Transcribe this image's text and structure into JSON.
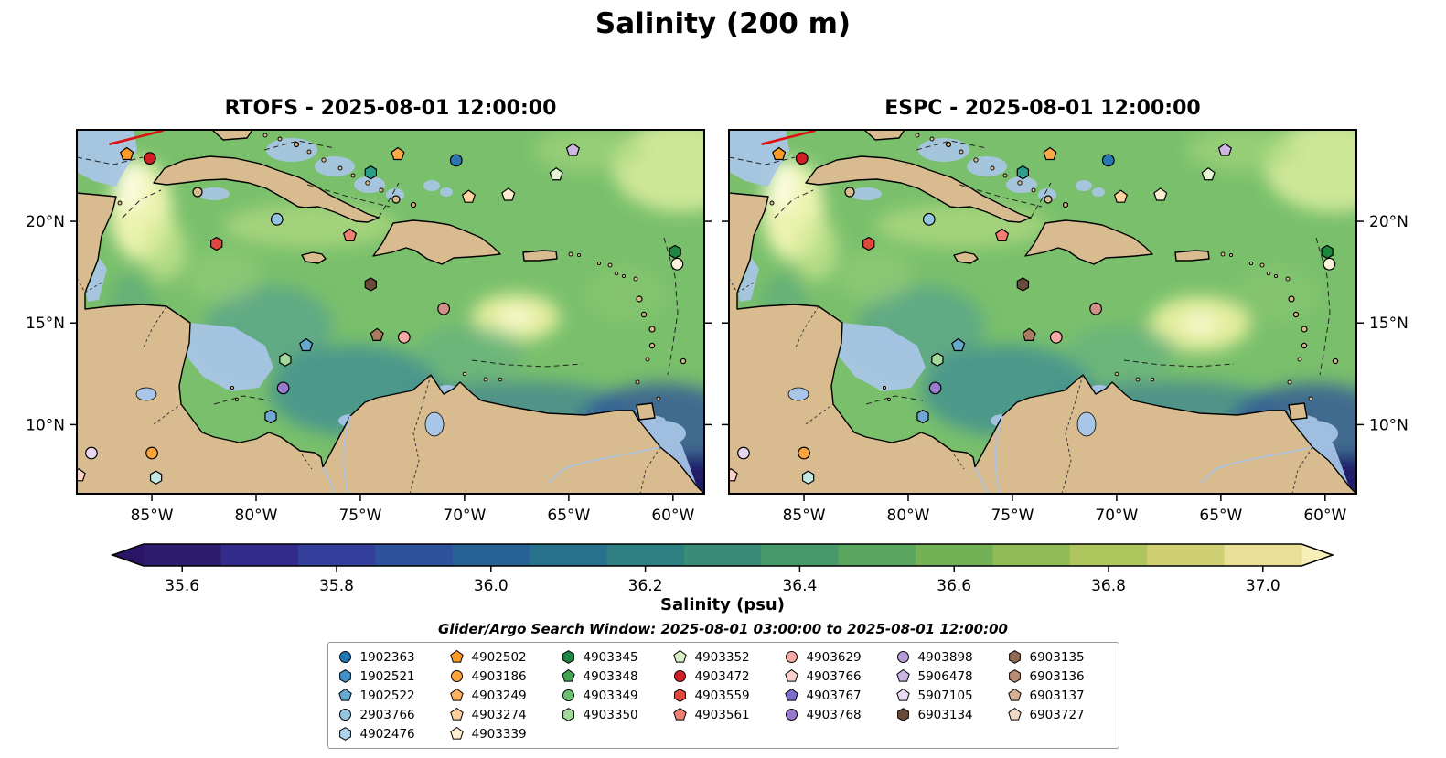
{
  "title": "Salinity (200 m)",
  "panels": [
    {
      "id": "rtofs",
      "title": "RTOFS - 2025-08-01 12:00:00"
    },
    {
      "id": "espc",
      "title": "ESPC - 2025-08-01 12:00:00"
    }
  ],
  "axes": {
    "lat_ticks": [
      {
        "label": "20°N",
        "value": 20
      },
      {
        "label": "15°N",
        "value": 15
      },
      {
        "label": "10°N",
        "value": 10
      }
    ],
    "lon_ticks": [
      {
        "label": "85°W",
        "value": -85
      },
      {
        "label": "80°W",
        "value": -80
      },
      {
        "label": "75°W",
        "value": -75
      },
      {
        "label": "70°W",
        "value": -70
      },
      {
        "label": "65°W",
        "value": -65
      },
      {
        "label": "60°W",
        "value": -60
      }
    ]
  },
  "colorbar": {
    "label": "Salinity (psu)",
    "range": [
      35.55,
      37.05
    ],
    "ticks": [
      {
        "label": "35.6",
        "value": 35.6
      },
      {
        "label": "35.8",
        "value": 35.8
      },
      {
        "label": "36.0",
        "value": 36.0
      },
      {
        "label": "36.2",
        "value": 36.2
      },
      {
        "label": "36.4",
        "value": 36.4
      },
      {
        "label": "36.6",
        "value": 36.6
      },
      {
        "label": "36.8",
        "value": 36.8
      },
      {
        "label": "37.0",
        "value": 37.0
      }
    ],
    "band_colors": [
      "#2e1d6e",
      "#332c8c",
      "#32409b",
      "#2d529b",
      "#286295",
      "#28718c",
      "#2d7f82",
      "#398c76",
      "#489969",
      "#5ba65e",
      "#73b156",
      "#90bc55",
      "#afc55d",
      "#cfd073",
      "#e9df96"
    ],
    "arrow_left": "#2a1566",
    "arrow_right": "#f6f0b8"
  },
  "search_window": "Glider/Argo Search Window: 2025-08-01 03:00:00 to 2025-08-01 12:00:00",
  "legend": {
    "columns": [
      [
        {
          "id": "1902363",
          "shape": "circle",
          "color": "#1f77b4"
        },
        {
          "id": "1902521",
          "shape": "hexagon",
          "color": "#4191c6"
        },
        {
          "id": "1902522",
          "shape": "pentagon",
          "color": "#65a8d0"
        },
        {
          "id": "2903766",
          "shape": "circle",
          "color": "#94c4df"
        },
        {
          "id": "4902476",
          "shape": "hexagon",
          "color": "#aed4ea"
        }
      ],
      [
        {
          "id": "4902502",
          "shape": "pentagon",
          "color": "#fd9a28"
        },
        {
          "id": "4903186",
          "shape": "circle",
          "color": "#fda33c"
        },
        {
          "id": "4903249",
          "shape": "pentagon",
          "color": "#fdb25f"
        },
        {
          "id": "4903274",
          "shape": "pentagon",
          "color": "#fdcf9b"
        },
        {
          "id": "4903339",
          "shape": "pentagon",
          "color": "#feeccf"
        }
      ],
      [
        {
          "id": "4903345",
          "shape": "hexagon",
          "color": "#1d8641"
        },
        {
          "id": "4903348",
          "shape": "pentagon",
          "color": "#41a352"
        },
        {
          "id": "4903349",
          "shape": "circle",
          "color": "#6dbf70"
        },
        {
          "id": "4903350",
          "shape": "hexagon",
          "color": "#a2d89a"
        }
      ],
      [
        {
          "id": "4903352",
          "shape": "pentagon",
          "color": "#d8f0c5"
        },
        {
          "id": "4903472",
          "shape": "circle",
          "color": "#d21f26"
        },
        {
          "id": "4903559",
          "shape": "hexagon",
          "color": "#e0483e"
        },
        {
          "id": "4903561",
          "shape": "pentagon",
          "color": "#ef8071"
        }
      ],
      [
        {
          "id": "4903629",
          "shape": "circle",
          "color": "#f6aaa2"
        },
        {
          "id": "4903766",
          "shape": "pentagon",
          "color": "#fbd0cb"
        },
        {
          "id": "4903767",
          "shape": "pentagon",
          "color": "#7a6fca"
        },
        {
          "id": "4903768",
          "shape": "circle",
          "color": "#9879cd"
        }
      ],
      [
        {
          "id": "4903898",
          "shape": "circle",
          "color": "#b79ad8"
        },
        {
          "id": "5906478",
          "shape": "pentagon",
          "color": "#cdb5e4"
        },
        {
          "id": "5907105",
          "shape": "pentagon",
          "color": "#e8daf3"
        },
        {
          "id": "6903134",
          "shape": "hexagon",
          "color": "#6b4a3a"
        }
      ],
      [
        {
          "id": "6903135",
          "shape": "hexagon",
          "color": "#8f6a55"
        },
        {
          "id": "6903136",
          "shape": "hexagon",
          "color": "#b98d76"
        },
        {
          "id": "6903137",
          "shape": "pentagon",
          "color": "#d4b297"
        },
        {
          "id": "6903727",
          "shape": "pentagon",
          "color": "#f0d9c4"
        }
      ]
    ]
  },
  "chart_data": {
    "type": "heatmap",
    "title": "Salinity (200 m)",
    "variable": "Salinity",
    "units": "psu",
    "depth_m": 200,
    "subplots": [
      "RTOFS - 2025-08-01 12:00:00",
      "ESPC - 2025-08-01 12:00:00"
    ],
    "x_tick_labels": [
      "85°W",
      "80°W",
      "75°W",
      "70°W",
      "65°W",
      "60°W"
    ],
    "y_tick_labels": [
      "20°N",
      "15°N",
      "10°N"
    ],
    "lon_range": [
      -88.6,
      -58.5
    ],
    "lat_range": [
      6.6,
      24.5
    ],
    "colorbar_ticks": [
      35.6,
      35.8,
      36.0,
      36.2,
      36.4,
      36.6,
      36.8,
      37.0
    ],
    "colorbar_range": [
      35.55,
      37.05
    ],
    "region": "Caribbean Sea / Gulf of Mexico",
    "glider_track": {
      "color": "#e01010",
      "lon1": -87.0,
      "lat1": 23.8,
      "lon2": -84.5,
      "lat2": 24.45
    },
    "markers": [
      {
        "shape": "pentagon",
        "color": "#fd9a28",
        "lon": -86.2,
        "lat": 23.3
      },
      {
        "shape": "circle",
        "color": "#d21f26",
        "lon": -85.1,
        "lat": 23.1
      },
      {
        "shape": "hexagon",
        "color": "#2c9e8a",
        "lon": -74.5,
        "lat": 22.4
      },
      {
        "shape": "pentagon",
        "color": "#fdaa44",
        "lon": -73.2,
        "lat": 23.3
      },
      {
        "shape": "circle",
        "color": "#2878b5",
        "lon": -70.4,
        "lat": 23.0
      },
      {
        "shape": "pentagon",
        "color": "#cdb5e4",
        "lon": -64.8,
        "lat": 23.5
      },
      {
        "shape": "pentagon",
        "color": "#e4f5d2",
        "lon": -65.6,
        "lat": 22.3
      },
      {
        "shape": "pentagon",
        "color": "#fdd3a0",
        "lon": -69.8,
        "lat": 21.2
      },
      {
        "shape": "pentagon",
        "color": "#feeccf",
        "lon": -67.9,
        "lat": 21.3
      },
      {
        "shape": "circle",
        "color": "#94c4df",
        "lon": -79.0,
        "lat": 20.1
      },
      {
        "shape": "hexagon",
        "color": "#e0483e",
        "lon": -81.9,
        "lat": 18.9
      },
      {
        "shape": "pentagon",
        "color": "#ef8071",
        "lon": -75.5,
        "lat": 19.3
      },
      {
        "shape": "hexagon",
        "color": "#1d8641",
        "lon": -59.9,
        "lat": 18.5
      },
      {
        "shape": "circle",
        "color": "#fdf3dc",
        "lon": -59.8,
        "lat": 17.9
      },
      {
        "shape": "hexagon",
        "color": "#6b4a3a",
        "lon": -74.5,
        "lat": 16.9
      },
      {
        "shape": "circle",
        "color": "#cf9088",
        "lon": -71.0,
        "lat": 15.7
      },
      {
        "shape": "circle",
        "color": "#f6aaa2",
        "lon": -72.9,
        "lat": 14.3
      },
      {
        "shape": "pentagon",
        "color": "#a97c5f",
        "lon": -74.2,
        "lat": 14.4
      },
      {
        "shape": "pentagon",
        "color": "#65a8d0",
        "lon": -77.6,
        "lat": 13.9
      },
      {
        "shape": "hexagon",
        "color": "#a2d89a",
        "lon": -78.6,
        "lat": 13.2
      },
      {
        "shape": "circle",
        "color": "#9879cd",
        "lon": -78.7,
        "lat": 11.8
      },
      {
        "shape": "hexagon",
        "color": "#6fa8d2",
        "lon": -79.3,
        "lat": 10.4
      },
      {
        "shape": "circle",
        "color": "#fda33c",
        "lon": -85.0,
        "lat": 8.6
      },
      {
        "shape": "circle",
        "color": "#e8d5ee",
        "lon": -87.9,
        "lat": 8.6
      },
      {
        "shape": "pentagon",
        "color": "#fbd0cb",
        "lon": -88.5,
        "lat": 7.5
      },
      {
        "shape": "hexagon",
        "color": "#c2e8e4",
        "lon": -84.8,
        "lat": 7.4
      }
    ]
  }
}
